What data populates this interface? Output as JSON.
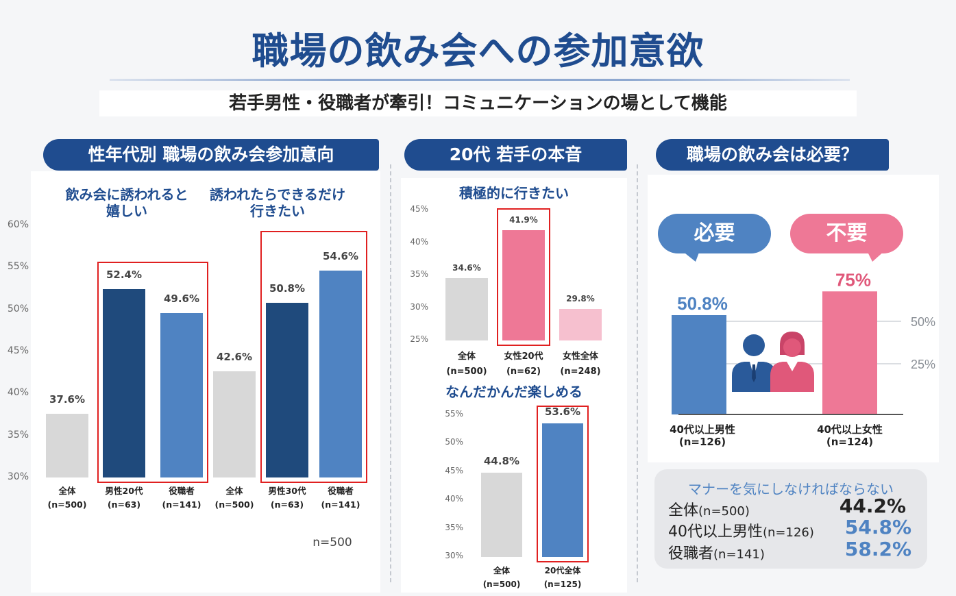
{
  "title": "職場の飲み会への参加意欲",
  "subtitle": "若手男性・役職者が牽引！コミュニケーションの場として機能",
  "colors": {
    "navy": "#1f4c8f",
    "dark_blue": "#1f4a7c",
    "mid_blue": "#4f83c2",
    "gray": "#d8d8d8",
    "pink": "#ee7896",
    "light_pink": "#f6c0cf",
    "red": "#e02020"
  },
  "chart_data": [
    {
      "type": "bar",
      "title": "性年代別 職場の飲み会参加意向",
      "groups": [
        {
          "label_line1": "飲み会に誘われると",
          "label_line2": "嬉しい"
        },
        {
          "label_line1": "誘われたらできるだけ",
          "label_line2": "行きたい"
        }
      ],
      "categories": [
        "全体",
        "男性20代",
        "役職者",
        "全体",
        "男性30代",
        "役職者"
      ],
      "sample_sizes": [
        "(n=500)",
        "(n=63)",
        "(n=141)",
        "(n=500)",
        "(n=63)",
        "(n=141)"
      ],
      "values": [
        37.6,
        52.4,
        49.6,
        42.6,
        50.8,
        54.6
      ],
      "value_labels": [
        "37.6%",
        "52.4%",
        "49.6%",
        "42.6%",
        "50.8%",
        "54.6%"
      ],
      "bar_colors": [
        "#d8d8d8",
        "#1f4a7c",
        "#4f83c2",
        "#d8d8d8",
        "#1f4a7c",
        "#4f83c2"
      ],
      "ylim": [
        30,
        60
      ],
      "yticks": [
        30,
        35,
        40,
        45,
        50,
        55,
        60
      ],
      "ytick_labels": [
        "30%",
        "35%",
        "40%",
        "45%",
        "50%",
        "55%",
        "60%"
      ],
      "note": "n=500"
    },
    {
      "type": "bar",
      "title": "積極的に行きたい",
      "categories": [
        "全体",
        "女性20代",
        "女性全体"
      ],
      "sample_sizes": [
        "(n=500)",
        "(n=62)",
        "(n=248)"
      ],
      "values": [
        34.6,
        41.9,
        29.8
      ],
      "value_labels": [
        "34.6%",
        "41.9%",
        "29.8%"
      ],
      "bar_colors": [
        "#d8d8d8",
        "#ee7896",
        "#f6c0cf"
      ],
      "ylim": [
        25,
        45
      ],
      "yticks": [
        25,
        30,
        35,
        40,
        45
      ],
      "ytick_labels": [
        "25%",
        "30%",
        "35%",
        "40%",
        "45%"
      ]
    },
    {
      "type": "bar",
      "title": "なんだかんだ楽しめる",
      "categories": [
        "全体",
        "20代全体"
      ],
      "sample_sizes": [
        "(n=500)",
        "(n=125)"
      ],
      "values": [
        44.8,
        53.6
      ],
      "value_labels": [
        "44.8%",
        "53.6%"
      ],
      "bar_colors": [
        "#d8d8d8",
        "#4f83c2"
      ],
      "ylim": [
        30,
        55
      ],
      "yticks": [
        30,
        35,
        40,
        45,
        50,
        55
      ],
      "ytick_labels": [
        "30%",
        "35%",
        "40%",
        "45%",
        "50%",
        "55%"
      ]
    },
    {
      "type": "bar",
      "title": "職場の飲み会は必要？",
      "bubbles": [
        "必要",
        "不要"
      ],
      "categories": [
        "40代以上男性",
        "40代以上女性"
      ],
      "sample_sizes": [
        "(n=126)",
        "(n=124)"
      ],
      "values": [
        50.8,
        75
      ],
      "value_labels": [
        "50.8%",
        "75%"
      ],
      "bar_colors": [
        "#4f83c2",
        "#ee7896"
      ],
      "ytick_labels": [
        "50%",
        "25%"
      ]
    },
    {
      "type": "table",
      "title": "マナーを気にしなければならない",
      "rows": [
        {
          "label": "全体",
          "n": "(n=500)",
          "value": "44.2%"
        },
        {
          "label": "40代以上男性",
          "n": "(n=126)",
          "value": "54.8%"
        },
        {
          "label": "役職者",
          "n": "(n=141)",
          "value": "58.2%"
        }
      ]
    }
  ],
  "banners": {
    "left": "性年代別 職場の飲み会参加意向",
    "middle": "20代 若手の本音",
    "right": "職場の飲み会は必要？"
  }
}
